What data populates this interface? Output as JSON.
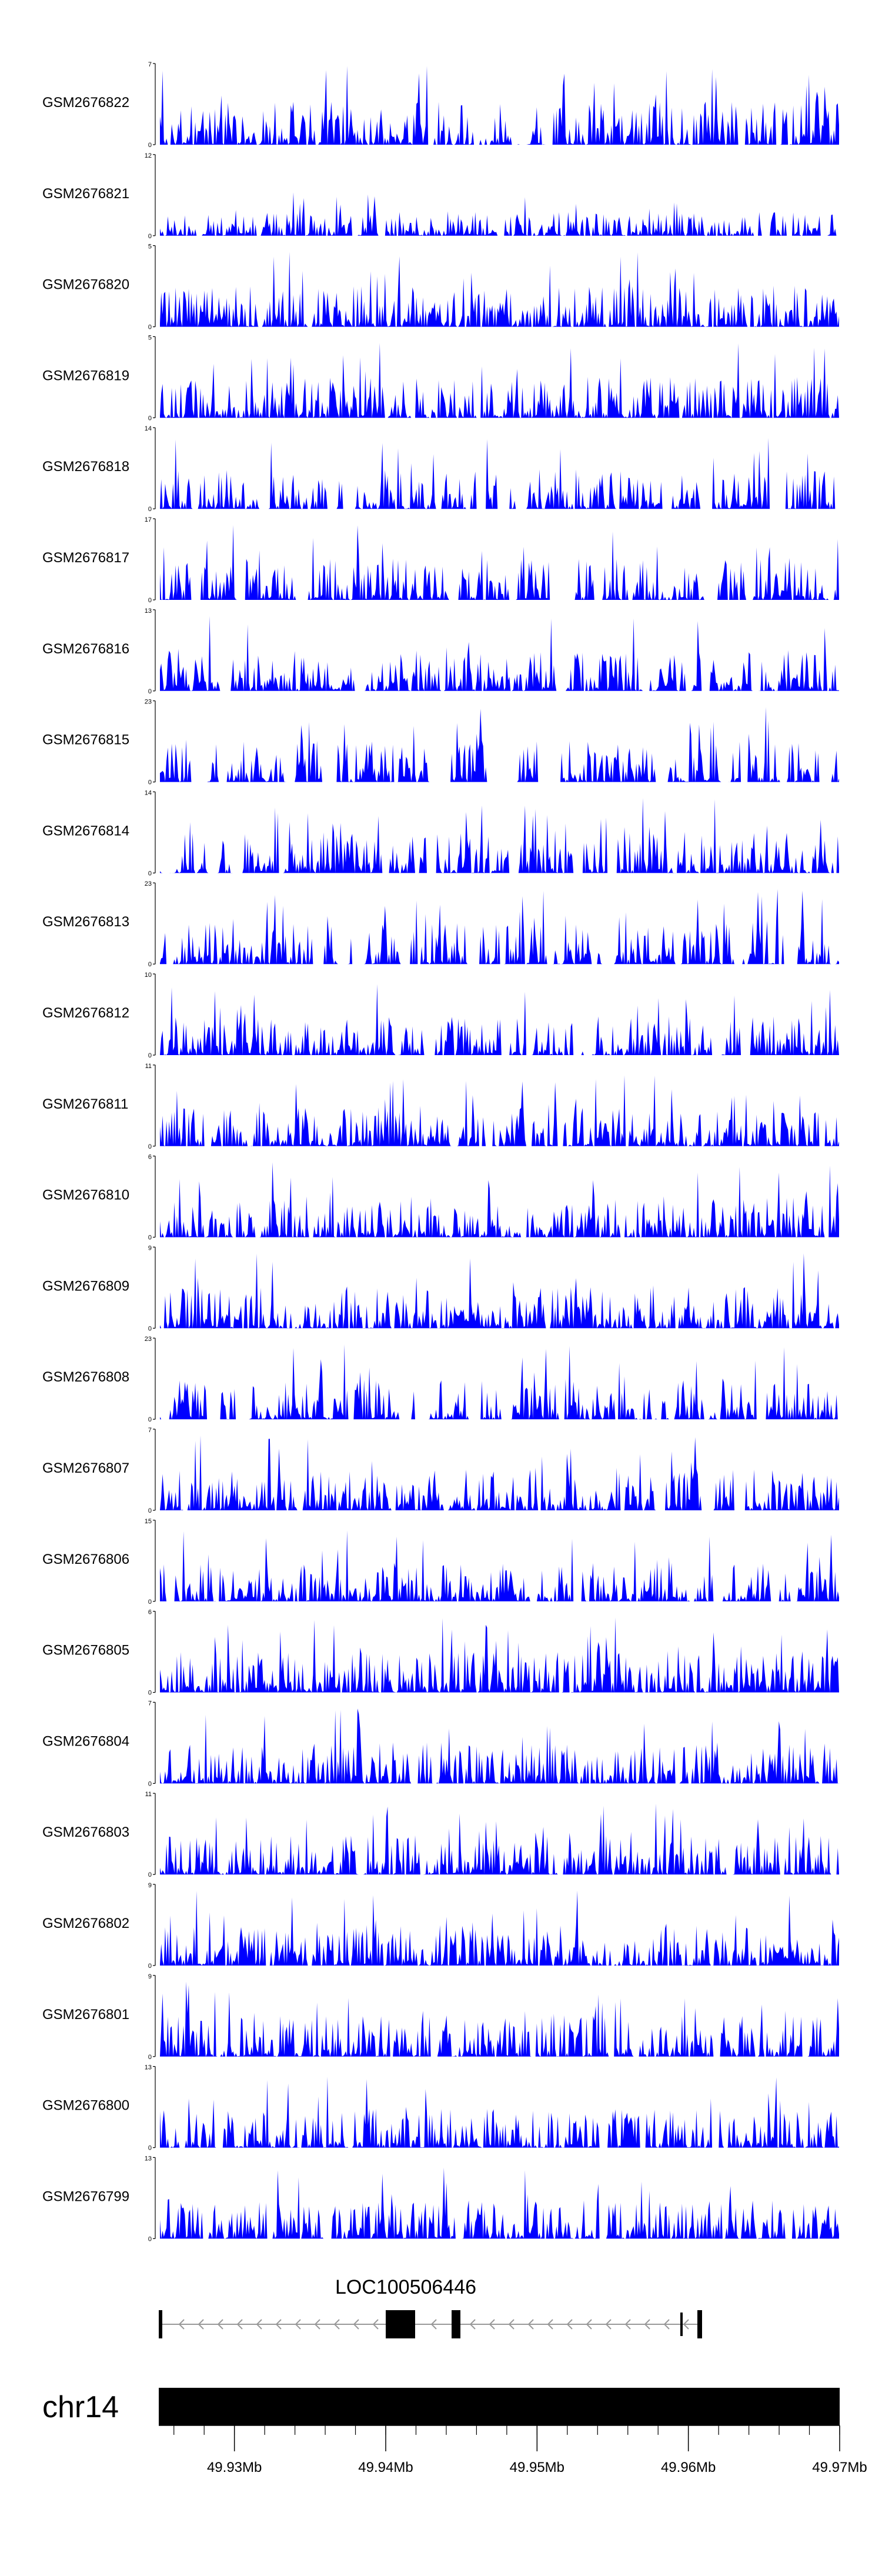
{
  "chart_data": {
    "type": "area",
    "title": "",
    "fill_color": "#0000ff",
    "x_axis": {
      "range_mb": [
        49.925,
        49.97
      ],
      "tick_labels": [
        "49.93Mb",
        "49.94Mb",
        "49.95Mb",
        "49.96Mb",
        "49.97Mb"
      ],
      "tick_values_mb": [
        49.93,
        49.94,
        49.95,
        49.96,
        49.97
      ]
    },
    "chromosome": {
      "label": "chr14"
    },
    "gene": {
      "label": "LOC100506446",
      "strand": "-"
    },
    "tracks": [
      {
        "name": "GSM2676822",
        "ymin": "0",
        "ymax": "7",
        "seed": 11,
        "peak": 1.0,
        "sparsity": 0.25
      },
      {
        "name": "GSM2676821",
        "ymin": "0",
        "ymax": "12",
        "seed": 23,
        "peak": 0.55,
        "sparsity": 0.3
      },
      {
        "name": "GSM2676820",
        "ymin": "0",
        "ymax": "5",
        "seed": 37,
        "peak": 0.95,
        "sparsity": 0.05
      },
      {
        "name": "GSM2676819",
        "ymin": "0",
        "ymax": "5",
        "seed": 41,
        "peak": 0.95,
        "sparsity": 0.1
      },
      {
        "name": "GSM2676818",
        "ymin": "0",
        "ymax": "14",
        "seed": 53,
        "peak": 0.9,
        "sparsity": 0.45
      },
      {
        "name": "GSM2676817",
        "ymin": "0",
        "ymax": "17",
        "seed": 67,
        "peak": 0.95,
        "sparsity": 0.5
      },
      {
        "name": "GSM2676816",
        "ymin": "0",
        "ymax": "13",
        "seed": 71,
        "peak": 0.95,
        "sparsity": 0.35
      },
      {
        "name": "GSM2676815",
        "ymin": "0",
        "ymax": "23",
        "seed": 83,
        "peak": 0.95,
        "sparsity": 0.6
      },
      {
        "name": "GSM2676814",
        "ymin": "0",
        "ymax": "14",
        "seed": 97,
        "peak": 0.95,
        "sparsity": 0.4
      },
      {
        "name": "GSM2676813",
        "ymin": "0",
        "ymax": "23",
        "seed": 101,
        "peak": 0.95,
        "sparsity": 0.45
      },
      {
        "name": "GSM2676812",
        "ymin": "0",
        "ymax": "10",
        "seed": 113,
        "peak": 0.9,
        "sparsity": 0.35
      },
      {
        "name": "GSM2676811",
        "ymin": "0",
        "ymax": "11",
        "seed": 127,
        "peak": 0.9,
        "sparsity": 0.2
      },
      {
        "name": "GSM2676810",
        "ymin": "0",
        "ymax": "6",
        "seed": 131,
        "peak": 0.95,
        "sparsity": 0.1
      },
      {
        "name": "GSM2676809",
        "ymin": "0",
        "ymax": "9",
        "seed": 149,
        "peak": 0.95,
        "sparsity": 0.15
      },
      {
        "name": "GSM2676808",
        "ymin": "0",
        "ymax": "23",
        "seed": 151,
        "peak": 0.95,
        "sparsity": 0.5
      },
      {
        "name": "GSM2676807",
        "ymin": "0",
        "ymax": "7",
        "seed": 163,
        "peak": 0.95,
        "sparsity": 0.15
      },
      {
        "name": "GSM2676806",
        "ymin": "0",
        "ymax": "15",
        "seed": 173,
        "peak": 0.9,
        "sparsity": 0.25
      },
      {
        "name": "GSM2676805",
        "ymin": "0",
        "ymax": "6",
        "seed": 181,
        "peak": 0.95,
        "sparsity": 0.05
      },
      {
        "name": "GSM2676804",
        "ymin": "0",
        "ymax": "7",
        "seed": 191,
        "peak": 0.95,
        "sparsity": 0.1
      },
      {
        "name": "GSM2676803",
        "ymin": "0",
        "ymax": "11",
        "seed": 197,
        "peak": 0.9,
        "sparsity": 0.15
      },
      {
        "name": "GSM2676802",
        "ymin": "0",
        "ymax": "9",
        "seed": 211,
        "peak": 0.95,
        "sparsity": 0.15
      },
      {
        "name": "GSM2676801",
        "ymin": "0",
        "ymax": "9",
        "seed": 223,
        "peak": 0.95,
        "sparsity": 0.2
      },
      {
        "name": "GSM2676800",
        "ymin": "0",
        "ymax": "13",
        "seed": 227,
        "peak": 0.9,
        "sparsity": 0.2
      },
      {
        "name": "GSM2676799",
        "ymin": "0",
        "ymax": "13",
        "seed": 239,
        "peak": 0.9,
        "sparsity": 0.2
      }
    ]
  }
}
